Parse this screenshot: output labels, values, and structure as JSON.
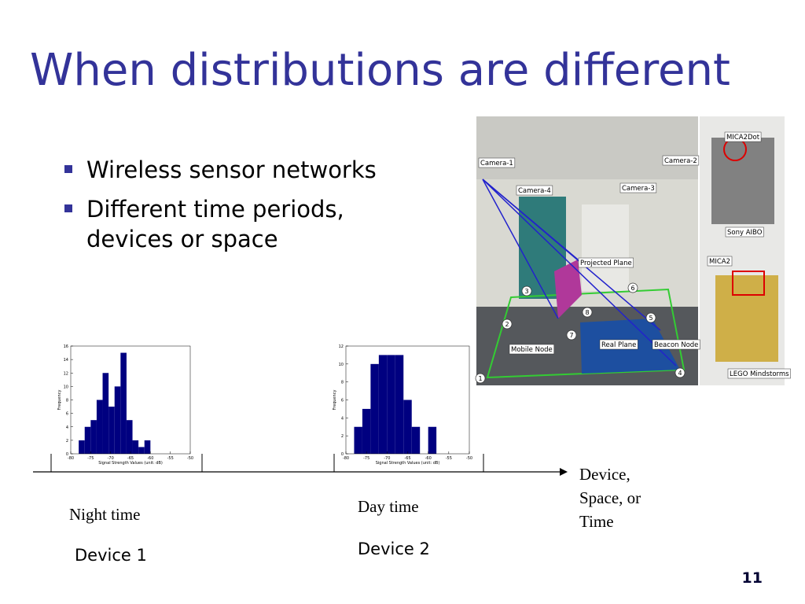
{
  "title": "When distributions are different",
  "bullets": [
    "Wireless sensor networks",
    "Different time periods,",
    "devices or space"
  ],
  "photo": {
    "labels": [
      "Camera-1",
      "Camera-2",
      "Camera-4",
      "Camera-3",
      "Projected Plane",
      "Mobile Node",
      "Real Plane",
      "Beacon Node",
      "MICA2Dot",
      "Sony AIBO",
      "MICA2",
      "LEGO Mindstorms"
    ],
    "markers": [
      "1",
      "2",
      "3",
      "4",
      "5",
      "6",
      "7",
      "8"
    ]
  },
  "histograms": [
    {
      "type": "histogram",
      "xlabel": "Signal Strength Values (unit: dB)",
      "ylabel": "Frequency",
      "bins": [
        -78,
        -76.5,
        -75,
        -73.5,
        -72,
        -70.5,
        -69,
        -67.5,
        -66,
        -64.5,
        -63,
        -61.5,
        -60
      ],
      "values": [
        2,
        4,
        5,
        8,
        12,
        7,
        10,
        15,
        5,
        2,
        1,
        2
      ],
      "color": "#000080",
      "xlim": [
        -80,
        -50
      ],
      "ylim": [
        0,
        16
      ],
      "xticks": [
        -80,
        -75,
        -70,
        -65,
        -60,
        -55,
        -50
      ],
      "yticks": [
        0,
        2,
        4,
        6,
        8,
        10,
        12,
        14,
        16
      ]
    },
    {
      "type": "histogram",
      "xlabel": "Signal Strength Values (unit: dB)",
      "ylabel": "Frequency",
      "bins": [
        -78,
        -76,
        -74,
        -72,
        -70,
        -68,
        -66,
        -64,
        -62,
        -60,
        -58
      ],
      "values": [
        3,
        5,
        10,
        11,
        11,
        11,
        6,
        3,
        0,
        3
      ],
      "color": "#000080",
      "xlim": [
        -80,
        -50
      ],
      "ylim": [
        0,
        12
      ],
      "xticks": [
        -80,
        -75,
        -70,
        -65,
        -60,
        -55,
        -50
      ],
      "yticks": [
        0,
        2,
        4,
        6,
        8,
        10,
        12
      ]
    }
  ],
  "timeline": {
    "axis_label": [
      "Device,",
      "Space, or",
      "Time"
    ]
  },
  "captions": [
    {
      "time": "Night time",
      "device": "Device 1"
    },
    {
      "time": "Day time",
      "device": "Device 2"
    }
  ],
  "page_number": "11"
}
